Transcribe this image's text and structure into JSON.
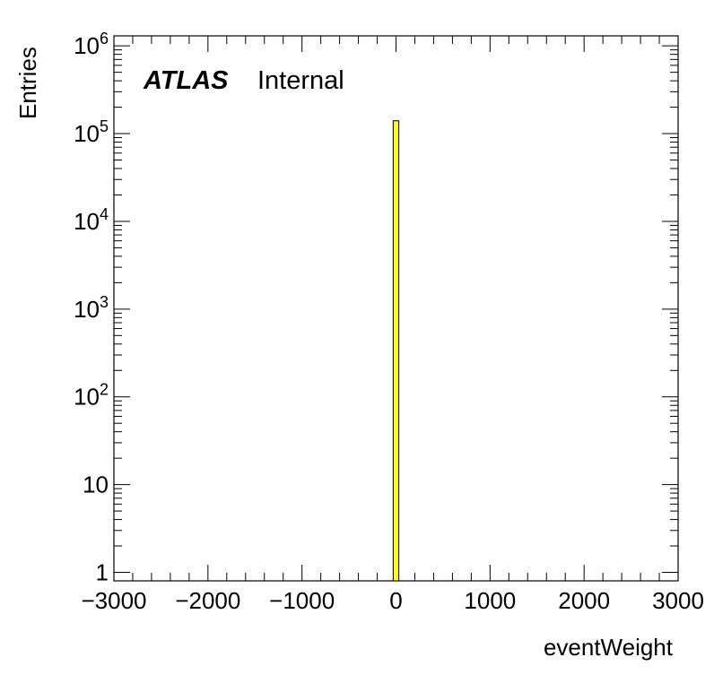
{
  "chart_data": {
    "type": "bar",
    "subtype": "histogram",
    "xlabel": "eventWeight",
    "ylabel": "Entries",
    "xlim": [
      -3000,
      3000
    ],
    "ylim": [
      0.8,
      1300000
    ],
    "yscale": "log",
    "x_ticks": [
      "−3000",
      "−2000",
      "−1000",
      "0",
      "1000",
      "2000",
      "3000"
    ],
    "x_tick_values": [
      -3000,
      -2000,
      -1000,
      0,
      1000,
      2000,
      3000
    ],
    "y_ticks": [
      {
        "value": 1,
        "base": "1",
        "exp": ""
      },
      {
        "value": 10,
        "base": "10",
        "exp": ""
      },
      {
        "value": 100,
        "base": "10",
        "exp": "2"
      },
      {
        "value": 1000,
        "base": "10",
        "exp": "3"
      },
      {
        "value": 10000,
        "base": "10",
        "exp": "4"
      },
      {
        "value": 100000,
        "base": "10",
        "exp": "5"
      },
      {
        "value": 1000000,
        "base": "10",
        "exp": "6"
      }
    ],
    "bins": [
      {
        "x_low": -30,
        "x_high": 30,
        "value": 140000
      }
    ],
    "bar_fill": "#ffff00",
    "bar_stroke": "#000000",
    "grid": false,
    "annotation": {
      "atlas": "ATLAS",
      "label": "Internal"
    }
  }
}
